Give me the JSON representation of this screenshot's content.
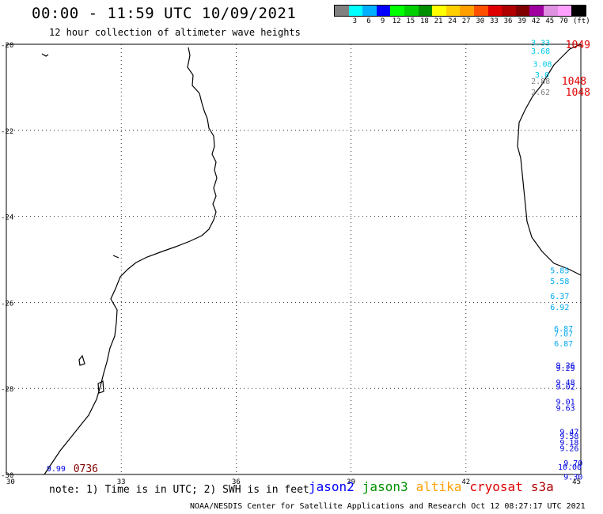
{
  "header": {
    "title": "00:00 - 11:59 UTC 10/09/2021",
    "subtitle": "12 hour collection of altimeter wave heights"
  },
  "legend": {
    "unit": "(ft)",
    "bins": [
      {
        "label": "",
        "color": "#808080"
      },
      {
        "label": "3",
        "color": "#00ffff"
      },
      {
        "label": "6",
        "color": "#00b0ff"
      },
      {
        "label": "9",
        "color": "#0000ff"
      },
      {
        "label": "12",
        "color": "#00ff00"
      },
      {
        "label": "15",
        "color": "#00d000"
      },
      {
        "label": "18",
        "color": "#009000"
      },
      {
        "label": "21",
        "color": "#ffff00"
      },
      {
        "label": "24",
        "color": "#ffd000"
      },
      {
        "label": "27",
        "color": "#ffa000"
      },
      {
        "label": "30",
        "color": "#ff5000"
      },
      {
        "label": "33",
        "color": "#e00000"
      },
      {
        "label": "36",
        "color": "#b00000"
      },
      {
        "label": "39",
        "color": "#800000"
      },
      {
        "label": "42",
        "color": "#a000a0"
      },
      {
        "label": "45",
        "color": "#e090e0"
      },
      {
        "label": "70",
        "color": "#ffa0ff"
      },
      {
        "label": "",
        "color": "#000000"
      }
    ]
  },
  "axes": {
    "lon_labels": [
      "30",
      "33",
      "36",
      "39",
      "42",
      "45"
    ],
    "lat_labels": [
      "-20",
      "-22",
      "-24",
      "-26",
      "-28",
      "-30"
    ]
  },
  "pass_labels": [
    {
      "text": "1049",
      "color": "#e00000",
      "lon": 44.6,
      "lat": -20.0
    },
    {
      "text": "1048",
      "color": "#e00000",
      "lon": 44.5,
      "lat": -20.85
    },
    {
      "text": "1048",
      "color": "#e00000",
      "lon": 44.6,
      "lat": -21.1
    },
    {
      "text": "0736",
      "color": "#800000",
      "lon": 31.75,
      "lat": -29.85
    }
  ],
  "wave_readings": [
    {
      "value": "3.33",
      "color": "#00c8e8",
      "lon": 43.7,
      "lat": -19.95
    },
    {
      "value": "3.68",
      "color": "#00c8e8",
      "lon": 43.7,
      "lat": -20.15
    },
    {
      "value": "3.08",
      "color": "#00c8e8",
      "lon": 43.75,
      "lat": -20.45
    },
    {
      "value": "3.0",
      "color": "#00c8e8",
      "lon": 43.8,
      "lat": -20.7
    },
    {
      "value": "2.88",
      "color": "#808080",
      "lon": 43.7,
      "lat": -20.85
    },
    {
      "value": "2.62",
      "color": "#808080",
      "lon": 43.7,
      "lat": -21.1
    },
    {
      "value": "5.85",
      "color": "#00a8f0",
      "lon": 44.2,
      "lat": -25.25
    },
    {
      "value": "5.58",
      "color": "#00a8f0",
      "lon": 44.2,
      "lat": -25.5
    },
    {
      "value": "6.37",
      "color": "#00a8f0",
      "lon": 44.2,
      "lat": -25.85
    },
    {
      "value": "6.92",
      "color": "#00a8f0",
      "lon": 44.2,
      "lat": -26.1
    },
    {
      "value": "6.87",
      "color": "#00a8f0",
      "lon": 44.3,
      "lat": -26.6
    },
    {
      "value": "7.07",
      "color": "#00a8f0",
      "lon": 44.3,
      "lat": -26.72
    },
    {
      "value": "6.87",
      "color": "#00a8f0",
      "lon": 44.3,
      "lat": -26.95
    },
    {
      "value": "9.26",
      "color": "#0000e0",
      "lon": 44.35,
      "lat": -27.45
    },
    {
      "value": "9.29",
      "color": "#0000e0",
      "lon": 44.35,
      "lat": -27.52
    },
    {
      "value": "9.48",
      "color": "#0000e0",
      "lon": 44.35,
      "lat": -27.85
    },
    {
      "value": "9.02",
      "color": "#0000e0",
      "lon": 44.35,
      "lat": -27.95
    },
    {
      "value": "9.01",
      "color": "#0000e0",
      "lon": 44.35,
      "lat": -28.3
    },
    {
      "value": "9.63",
      "color": "#0000e0",
      "lon": 44.35,
      "lat": -28.45
    },
    {
      "value": "9.47",
      "color": "#0000e0",
      "lon": 44.45,
      "lat": -29.0
    },
    {
      "value": "9.58",
      "color": "#0000e0",
      "lon": 44.45,
      "lat": -29.1
    },
    {
      "value": "9.18",
      "color": "#0000e0",
      "lon": 44.45,
      "lat": -29.25
    },
    {
      "value": "9.26",
      "color": "#0000e0",
      "lon": 44.45,
      "lat": -29.38
    },
    {
      "value": "9.70",
      "color": "#0000e0",
      "lon": 44.55,
      "lat": -29.72
    },
    {
      "value": "10.00",
      "color": "#0000e0",
      "lon": 44.4,
      "lat": -29.82
    },
    {
      "value": "9.30",
      "color": "#0000e0",
      "lon": 44.55,
      "lat": -30.05
    },
    {
      "value": "9.99",
      "color": "#0000e0",
      "lon": 31.05,
      "lat": -29.85
    }
  ],
  "footer": {
    "note": "note: 1) Time is in UTC; 2) SWH is in feet",
    "satellites": [
      {
        "name": "jason2",
        "color": "#0000ff"
      },
      {
        "name": "jason3",
        "color": "#009000"
      },
      {
        "name": "altika",
        "color": "#ffa000"
      },
      {
        "name": "cryosat",
        "color": "#e00000"
      },
      {
        "name": "s3a",
        "color": "#b00000"
      }
    ],
    "credit": "NOAA/NESDIS Center for Satellite Applications and Research   Oct 12 08:27:17 UTC 2021"
  }
}
